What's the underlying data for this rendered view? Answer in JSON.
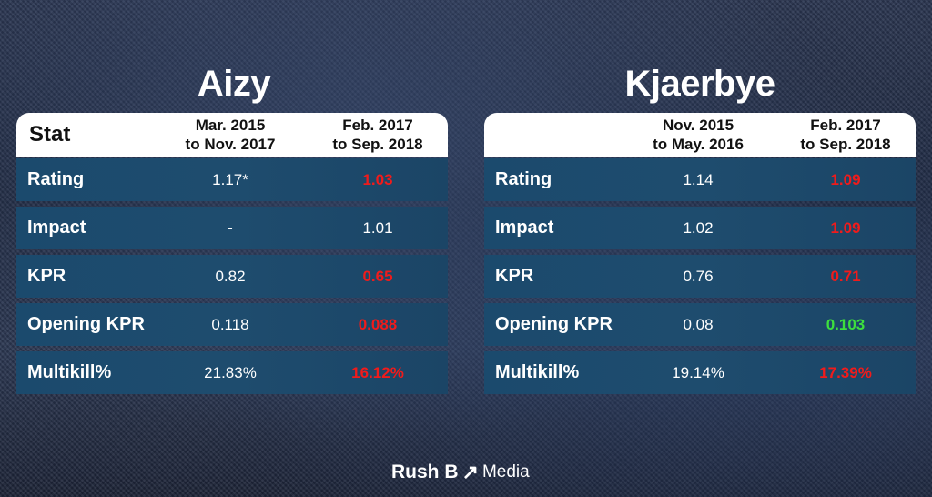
{
  "players": [
    {
      "name": "Aizy",
      "stat_header": "Stat",
      "period1": [
        "Mar. 2015",
        "to Nov. 2017"
      ],
      "period2": [
        "Feb. 2017",
        "to Sep. 2018"
      ],
      "rows": [
        {
          "label": "Rating",
          "v1": "1.17*",
          "v2": "1.03",
          "trend": "bad"
        },
        {
          "label": "Impact",
          "v1": "-",
          "v2": "1.01",
          "trend": "neutral"
        },
        {
          "label": "KPR",
          "v1": "0.82",
          "v2": "0.65",
          "trend": "bad"
        },
        {
          "label": "Opening KPR",
          "v1": "0.118",
          "v2": "0.088",
          "trend": "bad"
        },
        {
          "label": "Multikill%",
          "v1": "21.83%",
          "v2": "16.12%",
          "trend": "bad"
        }
      ]
    },
    {
      "name": "Kjaerbye",
      "stat_header": "",
      "period1": [
        "Nov. 2015",
        "to May. 2016"
      ],
      "period2": [
        "Feb. 2017",
        "to Sep. 2018"
      ],
      "rows": [
        {
          "label": "Rating",
          "v1": "1.14",
          "v2": "1.09",
          "trend": "bad"
        },
        {
          "label": "Impact",
          "v1": "1.02",
          "v2": "1.09",
          "trend": "bad"
        },
        {
          "label": "KPR",
          "v1": "0.76",
          "v2": "0.71",
          "trend": "bad"
        },
        {
          "label": "Opening KPR",
          "v1": "0.08",
          "v2": "0.103",
          "trend": "good"
        },
        {
          "label": "Multikill%",
          "v1": "19.14%",
          "v2": "17.39%",
          "trend": "bad"
        }
      ]
    }
  ],
  "brand": {
    "part1": "Rush B",
    "arrow_icon": "arrow-up-right-icon",
    "part2": "Media"
  },
  "colors": {
    "bad": "#f01b1b",
    "good": "#3de03d",
    "row_bg": "#1d4a6c"
  }
}
